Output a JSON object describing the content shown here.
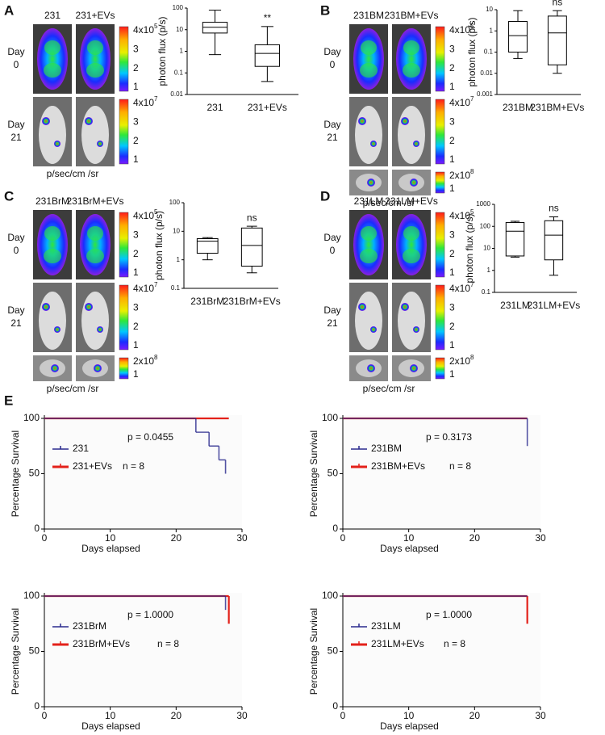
{
  "figure_panels": [
    {
      "letter": "A",
      "columns": [
        "231",
        "231+EVs"
      ],
      "rows": [
        [
          "Day",
          "0"
        ],
        [
          "Day",
          "21"
        ]
      ],
      "colorbars": [
        {
          "max_base": "4x10",
          "max_exp": "5",
          "ticks": [
            "3",
            "2",
            "1"
          ]
        },
        {
          "max_base": "4x10",
          "max_exp": "7",
          "ticks": [
            "3",
            "2",
            "1"
          ]
        }
      ],
      "unit": "p/sec/cm  /sr"
    },
    {
      "letter": "B",
      "columns": [
        "231BM",
        "231BM+EVs"
      ],
      "rows": [
        [
          "Day",
          "0"
        ],
        [
          "Day",
          "21"
        ]
      ],
      "colorbars": [
        {
          "max_base": "4x10",
          "max_exp": "5",
          "ticks": [
            "3",
            "2",
            "1"
          ]
        },
        {
          "max_base": "4x10",
          "max_exp": "7",
          "ticks": [
            "3",
            "2",
            "1"
          ]
        },
        {
          "max_base": "2x10",
          "max_exp": "8",
          "ticks": [
            "1"
          ]
        }
      ],
      "unit": "p/sec/cm  /sr"
    },
    {
      "letter": "C",
      "columns": [
        "231BrM",
        "231BrM+EVs"
      ],
      "rows": [
        [
          "Day",
          "0"
        ],
        [
          "Day",
          "21"
        ]
      ],
      "colorbars": [
        {
          "max_base": "4x10",
          "max_exp": "5",
          "ticks": [
            "3",
            "2",
            "1"
          ]
        },
        {
          "max_base": "4x10",
          "max_exp": "7",
          "ticks": [
            "3",
            "2",
            "1"
          ]
        },
        {
          "max_base": "2x10",
          "max_exp": "8",
          "ticks": [
            "1"
          ]
        }
      ],
      "unit": "p/sec/cm  /sr"
    },
    {
      "letter": "D",
      "columns": [
        "231LM",
        "231LM+EVs"
      ],
      "rows": [
        [
          "Day",
          "0"
        ],
        [
          "Day",
          "21"
        ]
      ],
      "colorbars": [
        {
          "max_base": "4x10",
          "max_exp": "5",
          "ticks": [
            "3",
            "2",
            "1"
          ]
        },
        {
          "max_base": "4x10",
          "max_exp": "7",
          "ticks": [
            "3",
            "2",
            "1"
          ]
        },
        {
          "max_base": "2x10",
          "max_exp": "8",
          "ticks": [
            "1"
          ]
        }
      ],
      "unit": "p/sec/cm  /sr"
    }
  ],
  "panel_e_letter": "E",
  "chart_data": [
    {
      "type": "box",
      "ylabel": "photon flux (p/s)",
      "log_y": true,
      "ylim": [
        0.01,
        100
      ],
      "yticks": [
        0.01,
        0.1,
        1,
        10,
        100
      ],
      "categories": [
        "231",
        "231+EVs"
      ],
      "annotation": "**",
      "boxes": [
        {
          "min": 0.7,
          "q1": 7,
          "median": 13,
          "q3": 22,
          "max": 80
        },
        {
          "min": 0.04,
          "q1": 0.2,
          "median": 0.8,
          "q3": 2,
          "max": 14
        }
      ]
    },
    {
      "type": "box",
      "ylabel": "photon flux (p/s)",
      "log_y": true,
      "ylim": [
        0.001,
        10
      ],
      "yticks": [
        0.001,
        0.01,
        0.1,
        1,
        10
      ],
      "categories": [
        "231BM",
        "231BM+EVs"
      ],
      "annotation": "ns",
      "boxes": [
        {
          "min": 0.05,
          "q1": 0.1,
          "median": 0.6,
          "q3": 2.8,
          "max": 9
        },
        {
          "min": 0.01,
          "q1": 0.025,
          "median": 0.8,
          "q3": 5,
          "max": 9
        }
      ]
    },
    {
      "type": "box",
      "ylabel": "photon flux (p/s)",
      "log_y": true,
      "ylim": [
        0.1,
        100
      ],
      "yticks": [
        0.1,
        1,
        10,
        100
      ],
      "categories": [
        "231BrM",
        "231BrM+EVs"
      ],
      "annotation": "ns",
      "boxes": [
        {
          "min": 1,
          "q1": 1.7,
          "median": 4.5,
          "q3": 5.5,
          "max": 6
        },
        {
          "min": 0.35,
          "q1": 0.6,
          "median": 3.2,
          "q3": 13,
          "max": 15
        }
      ]
    },
    {
      "type": "box",
      "ylabel": "photon flux (p/s)",
      "log_y": true,
      "ylim": [
        0.1,
        1000
      ],
      "yticks": [
        0.1,
        1,
        10,
        100,
        1000
      ],
      "categories": [
        "231LM",
        "231LM+EVs"
      ],
      "annotation": "ns",
      "boxes": [
        {
          "min": 4,
          "q1": 4.5,
          "median": 60,
          "q3": 150,
          "max": 170
        },
        {
          "min": 0.6,
          "q1": 3,
          "median": 40,
          "q3": 180,
          "max": 270
        }
      ]
    },
    {
      "type": "step",
      "xlabel": "Days elapsed",
      "ylabel": "Percentage Survival",
      "xlim": [
        0,
        30
      ],
      "xticks": [
        0,
        10,
        20,
        30
      ],
      "ylim": [
        0,
        100
      ],
      "yticks": [
        0,
        50,
        100
      ],
      "p_value": "p = 0.0455",
      "n_label": "n = 8",
      "series": [
        {
          "name": "231",
          "color": "#2a2a8e",
          "x": [
            0,
            23,
            25,
            26.5,
            27.5
          ],
          "values": [
            100,
            87.5,
            75,
            62.5,
            50
          ]
        },
        {
          "name": "231+EVs",
          "color": "#e3211a",
          "x": [
            0,
            28
          ],
          "values": [
            100,
            100
          ]
        }
      ]
    },
    {
      "type": "step",
      "xlabel": "Days elapsed",
      "ylabel": "Percentage Survival",
      "xlim": [
        0,
        30
      ],
      "xticks": [
        0,
        10,
        20,
        30
      ],
      "ylim": [
        0,
        100
      ],
      "yticks": [
        0,
        50,
        100
      ],
      "p_value": "p = 0.3173",
      "n_label": "n = 8",
      "series": [
        {
          "name": "231BM",
          "color": "#2a2a8e",
          "x": [
            0,
            28
          ],
          "values": [
            100,
            75
          ]
        },
        {
          "name": "231BM+EVs",
          "color": "#e3211a",
          "x": [
            0,
            28
          ],
          "values": [
            100,
            100
          ]
        }
      ]
    },
    {
      "type": "step",
      "xlabel": "Days elapsed",
      "ylabel": "Percentage Survival",
      "xlim": [
        0,
        30
      ],
      "xticks": [
        0,
        10,
        20,
        30
      ],
      "ylim": [
        0,
        100
      ],
      "yticks": [
        0,
        50,
        100
      ],
      "p_value": "p = 1.0000",
      "n_label": "n = 8",
      "series": [
        {
          "name": "231BrM",
          "color": "#2a2a8e",
          "x": [
            0,
            27.5
          ],
          "values": [
            100,
            87.5
          ]
        },
        {
          "name": "231BrM+EVs",
          "color": "#e3211a",
          "x": [
            0,
            28
          ],
          "values": [
            100,
            75
          ]
        }
      ]
    },
    {
      "type": "step",
      "xlabel": "Days elapsed",
      "ylabel": "Percentage Survival",
      "xlim": [
        0,
        30
      ],
      "xticks": [
        0,
        10,
        20,
        30
      ],
      "ylim": [
        0,
        100
      ],
      "yticks": [
        0,
        50,
        100
      ],
      "p_value": "p = 1.0000",
      "n_label": "n = 8",
      "series": [
        {
          "name": "231LM",
          "color": "#2a2a8e",
          "x": [
            0,
            28
          ],
          "values": [
            100,
            100
          ]
        },
        {
          "name": "231LM+EVs",
          "color": "#e3211a",
          "x": [
            0,
            28
          ],
          "values": [
            100,
            75
          ]
        }
      ]
    }
  ]
}
